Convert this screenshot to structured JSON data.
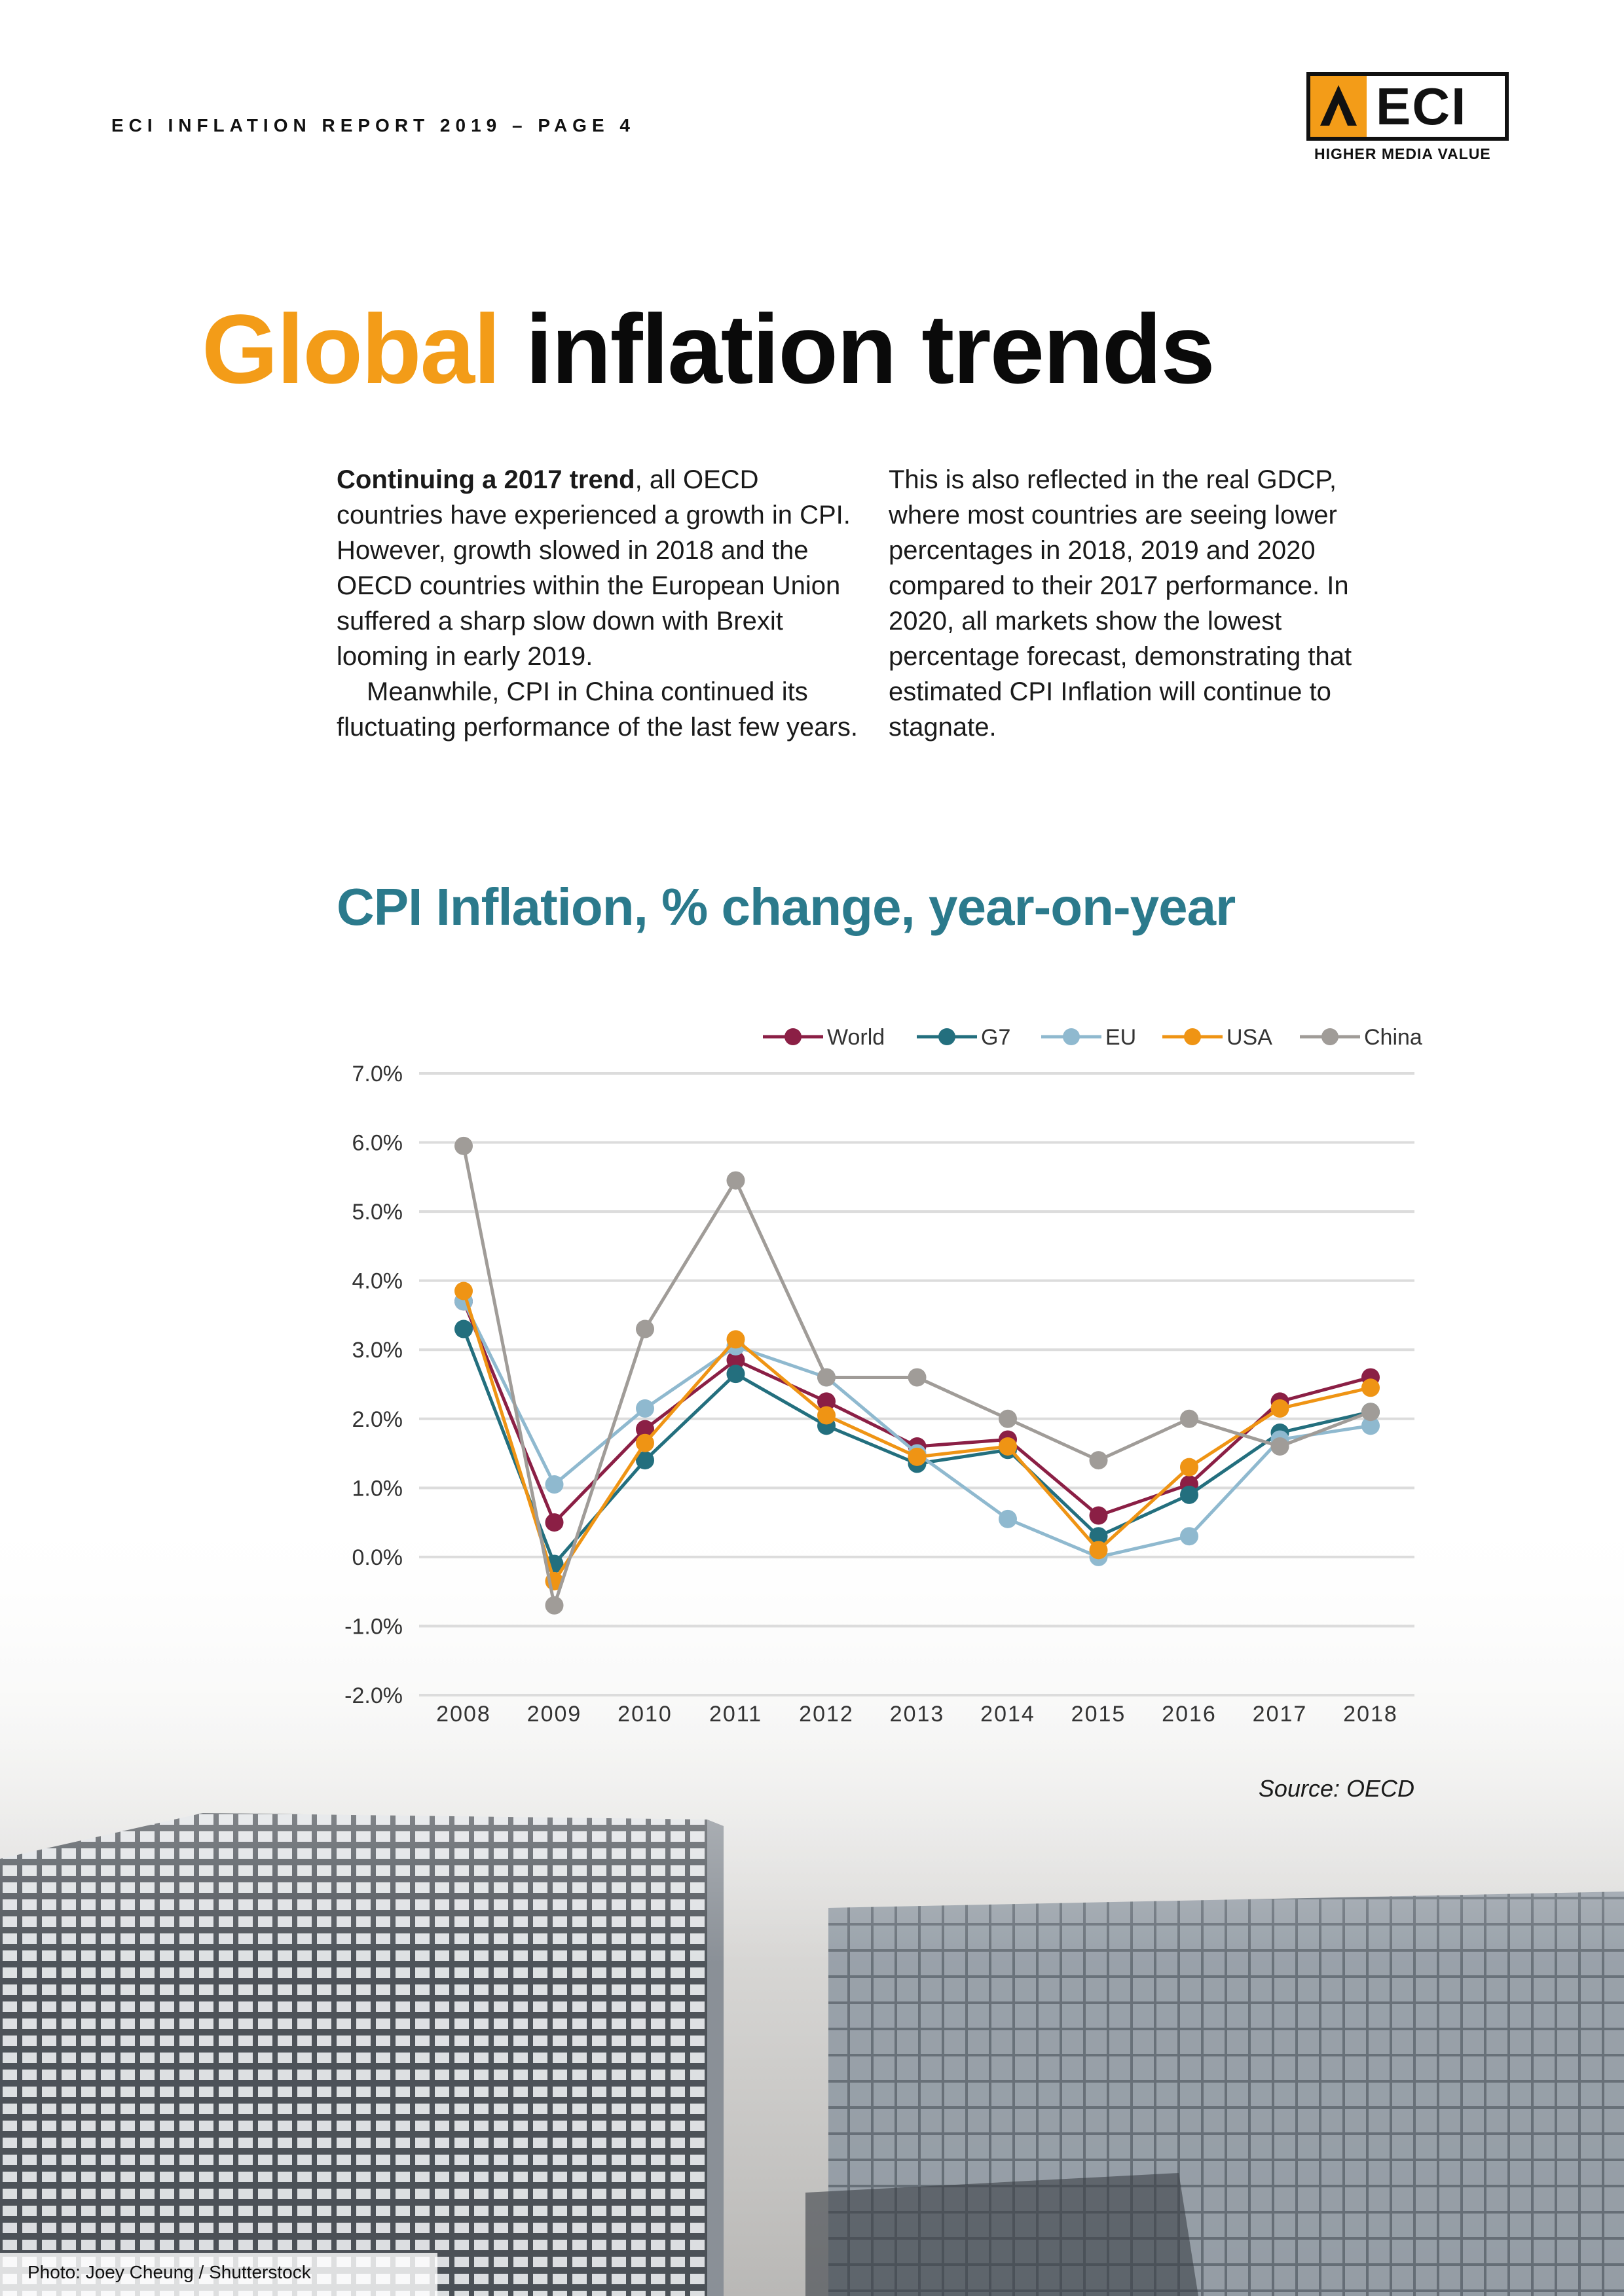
{
  "header": {
    "title": "ECI INFLATION REPORT 2019 – PAGE 4"
  },
  "logo": {
    "text": "ECI",
    "tagline": "HIGHER MEDIA VALUE"
  },
  "colors": {
    "accent": "#f39c18",
    "chart_title": "#2b7a8c",
    "world": "#8b1f45",
    "g7": "#236f7e",
    "eu": "#8fb9cf",
    "usa": "#ef9414",
    "china": "#a09c98"
  },
  "title": {
    "accent": "Global",
    "rest": " inflation trends"
  },
  "body": {
    "left_bold": "Continuing a 2017 trend",
    "left_text": ", all OECD countries have experienced a growth in CPI. However, growth slowed in 2018 and the OECD countries within the European Union suffered a sharp slow down with Brexit looming in early 2019.",
    "left_p2": "Meanwhile, CPI in China continued its fluctuating performance of the last few years.",
    "right_text": "This is also reflected in the real GDCP, where most countries are seeing lower percentages in 2018, 2019 and 2020 compared to their 2017 performance. In 2020, all markets show the lowest percentage forecast, demonstrating that estimated CPI Inflation will continue to stagnate."
  },
  "chart_data": {
    "type": "line",
    "title": "CPI Inflation, % change, year-on-year",
    "xlabel": "",
    "ylabel": "",
    "categories": [
      "2008",
      "2009",
      "2010",
      "2011",
      "2012",
      "2013",
      "2014",
      "2015",
      "2016",
      "2017",
      "2018"
    ],
    "ylim": [
      -2.0,
      7.0
    ],
    "yticks": [
      7.0,
      6.0,
      5.0,
      4.0,
      3.0,
      2.0,
      1.0,
      0.0,
      -1.0,
      -2.0
    ],
    "ytick_labels": [
      "7.0%",
      "6.0%",
      "5.0%",
      "4.0%",
      "3.0%",
      "2.0%",
      "1.0%",
      "0.0%",
      "-1.0%",
      "-2.0%"
    ],
    "grid": true,
    "legend_position": "top-right",
    "series": [
      {
        "name": "World",
        "color": "#8b1f45",
        "values": [
          3.7,
          0.5,
          1.85,
          2.85,
          2.25,
          1.6,
          1.7,
          0.6,
          1.05,
          2.25,
          2.6
        ]
      },
      {
        "name": "G7",
        "color": "#236f7e",
        "values": [
          3.3,
          -0.1,
          1.4,
          2.65,
          1.9,
          1.35,
          1.55,
          0.3,
          0.9,
          1.8,
          2.1
        ]
      },
      {
        "name": "EU",
        "color": "#8fb9cf",
        "values": [
          3.7,
          1.05,
          2.15,
          3.05,
          2.6,
          1.5,
          0.55,
          0.0,
          0.3,
          1.7,
          1.9
        ]
      },
      {
        "name": "USA",
        "color": "#ef9414",
        "values": [
          3.85,
          -0.35,
          1.65,
          3.15,
          2.05,
          1.45,
          1.6,
          0.1,
          1.3,
          2.15,
          2.45
        ]
      },
      {
        "name": "China",
        "color": "#a09c98",
        "values": [
          5.95,
          -0.7,
          3.3,
          5.45,
          2.6,
          2.6,
          2.0,
          1.4,
          2.0,
          1.6,
          2.1
        ]
      }
    ],
    "source": "Source: OECD"
  },
  "credit": "Photo: Joey Cheung / Shutterstock"
}
